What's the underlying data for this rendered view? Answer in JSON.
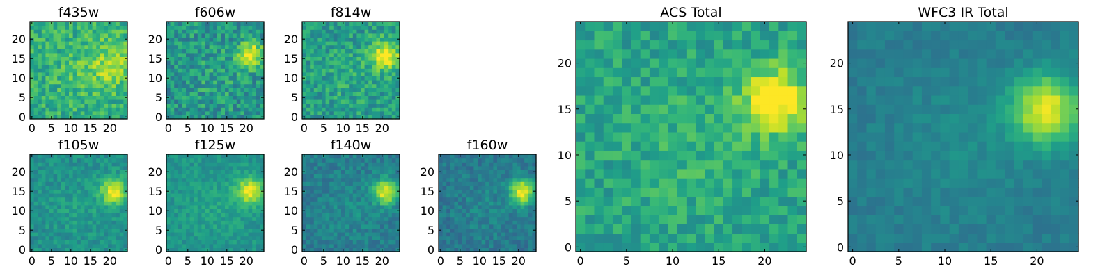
{
  "figure": {
    "colormap": "viridis",
    "frame_color": "#000000",
    "background": "#ffffff"
  },
  "chart_data": [
    {
      "type": "heatmap",
      "title": "f435w",
      "grid": false,
      "xlim": [
        0,
        24
      ],
      "ylim": [
        0,
        24
      ],
      "xticks": [
        "0",
        "5",
        "10",
        "15",
        "20"
      ],
      "yticks": [
        "0",
        "5",
        "10",
        "15",
        "20"
      ],
      "source": {
        "center": [
          20,
          14
        ],
        "sigma": 4.5,
        "peak": 0.22
      },
      "base": 0.62,
      "noise": 0.3,
      "seed": 11
    },
    {
      "type": "heatmap",
      "title": "f606w",
      "grid": false,
      "xlim": [
        0,
        24
      ],
      "ylim": [
        0,
        24
      ],
      "xticks": [
        "0",
        "5",
        "10",
        "15",
        "20"
      ],
      "yticks": [
        "0",
        "5",
        "10",
        "15",
        "20"
      ],
      "source": {
        "center": [
          21,
          16
        ],
        "sigma": 2.2,
        "peak": 0.55
      },
      "base": 0.52,
      "noise": 0.34,
      "seed": 23
    },
    {
      "type": "heatmap",
      "title": "f814w",
      "grid": false,
      "xlim": [
        0,
        24
      ],
      "ylim": [
        0,
        24
      ],
      "xticks": [
        "0",
        "5",
        "10",
        "15",
        "20"
      ],
      "yticks": [
        "0",
        "5",
        "10",
        "15",
        "20"
      ],
      "source": {
        "center": [
          21,
          16
        ],
        "sigma": 2.6,
        "peak": 0.48
      },
      "base": 0.55,
      "noise": 0.3,
      "seed": 37
    },
    {
      "type": "heatmap",
      "title": "f105w",
      "grid": false,
      "xlim": [
        0,
        24
      ],
      "ylim": [
        0,
        24
      ],
      "xticks": [
        "0",
        "5",
        "10",
        "15",
        "20"
      ],
      "yticks": [
        "0",
        "5",
        "10",
        "15",
        "20"
      ],
      "source": {
        "center": [
          21,
          15
        ],
        "sigma": 2.4,
        "peak": 0.48
      },
      "base": 0.5,
      "noise": 0.18,
      "seed": 41
    },
    {
      "type": "heatmap",
      "title": "f125w",
      "grid": false,
      "xlim": [
        0,
        24
      ],
      "ylim": [
        0,
        24
      ],
      "xticks": [
        "0",
        "5",
        "10",
        "15",
        "20"
      ],
      "yticks": [
        "0",
        "5",
        "10",
        "15",
        "20"
      ],
      "source": {
        "center": [
          21,
          15
        ],
        "sigma": 2.5,
        "peak": 0.46
      },
      "base": 0.52,
      "noise": 0.16,
      "seed": 53
    },
    {
      "type": "heatmap",
      "title": "f140w",
      "grid": false,
      "xlim": [
        0,
        24
      ],
      "ylim": [
        0,
        24
      ],
      "xticks": [
        "0",
        "5",
        "10",
        "15",
        "20"
      ],
      "yticks": [
        "0",
        "5",
        "10",
        "15",
        "20"
      ],
      "source": {
        "center": [
          21,
          15
        ],
        "sigma": 2.3,
        "peak": 0.55
      },
      "base": 0.42,
      "noise": 0.18,
      "seed": 67
    },
    {
      "type": "heatmap",
      "title": "f160w",
      "grid": false,
      "xlim": [
        0,
        24
      ],
      "ylim": [
        0,
        24
      ],
      "xticks": [
        "0",
        "5",
        "10",
        "15",
        "20"
      ],
      "yticks": [
        "0",
        "5",
        "10",
        "15",
        "20"
      ],
      "source": {
        "center": [
          21,
          15
        ],
        "sigma": 2.3,
        "peak": 0.58
      },
      "base": 0.4,
      "noise": 0.18,
      "seed": 79
    },
    {
      "type": "heatmap",
      "title": "ACS Total",
      "grid": false,
      "xlim": [
        0,
        24
      ],
      "ylim": [
        0,
        24
      ],
      "xticks": [
        "0",
        "5",
        "10",
        "15",
        "20"
      ],
      "yticks": [
        "0",
        "5",
        "10",
        "15",
        "20"
      ],
      "source": {
        "center": [
          21,
          16
        ],
        "sigma": 2.4,
        "peak": 0.5
      },
      "base": 0.58,
      "noise": 0.24,
      "seed": 97
    },
    {
      "type": "heatmap",
      "title": "WFC3 IR Total",
      "grid": false,
      "xlim": [
        0,
        24
      ],
      "ylim": [
        0,
        24
      ],
      "xticks": [
        "0",
        "5",
        "10",
        "15",
        "20"
      ],
      "yticks": [
        "0",
        "5",
        "10",
        "15",
        "20"
      ],
      "source": {
        "center": [
          21,
          15
        ],
        "sigma": 2.6,
        "peak": 0.55
      },
      "base": 0.42,
      "noise": 0.1,
      "seed": 113
    }
  ]
}
